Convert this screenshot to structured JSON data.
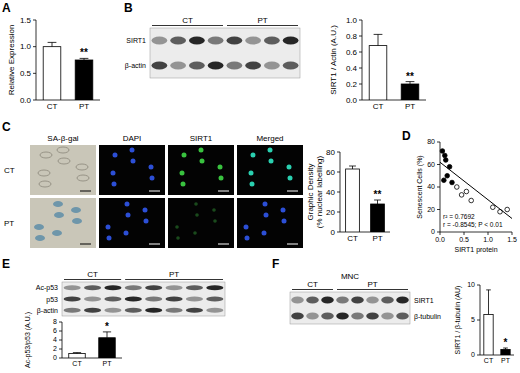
{
  "chart_data": [
    {
      "type": "bar",
      "title": "A",
      "categories": [
        "CT",
        "PT"
      ],
      "values": [
        1.0,
        0.75
      ],
      "errors": [
        0.08,
        0.03
      ],
      "significance": [
        null,
        "**"
      ],
      "colors": [
        "#ffffff",
        "#000000"
      ],
      "y_label": "Relative Expression",
      "ylim": [
        0,
        1.5
      ],
      "yticks": [
        {
          "value": 0,
          "label": "0.0"
        },
        0.5,
        {
          "value": 1,
          "label": "1.0"
        },
        1.5
      ]
    },
    {
      "type": "bar",
      "title": "B",
      "blot": {
        "groups": [
          "CT",
          "PT"
        ],
        "bands": [
          "SIRT1",
          "β-actin"
        ]
      },
      "categories": [
        "CT",
        "PT"
      ],
      "values": [
        0.68,
        0.2
      ],
      "errors": [
        0.14,
        0.03
      ],
      "significance": [
        null,
        "**"
      ],
      "colors": [
        "#ffffff",
        "#000000"
      ],
      "y_label": "SIRT1 / Actin (A.U.)",
      "ylim": [
        0,
        1
      ],
      "yticks": [
        {
          "value": 0,
          "label": "0.0"
        },
        0.2,
        0.4,
        0.6,
        0.8,
        {
          "value": 1,
          "label": "1.0"
        }
      ]
    },
    {
      "type": "bar",
      "title": "C",
      "images": {
        "columns": [
          "SA-β-gal",
          "DAPI",
          "SIRT1",
          "Merged"
        ],
        "rows": [
          "CT",
          "PT"
        ]
      },
      "categories": [
        "CT",
        "PT"
      ],
      "values": [
        63,
        28
      ],
      "errors": [
        3,
        4
      ],
      "significance": [
        null,
        "**"
      ],
      "colors": [
        "#ffffff",
        "#000000"
      ],
      "y_label": [
        "Graphic Density",
        "(% nuclear labelling)"
      ],
      "ylim": [
        0,
        80
      ],
      "yticks": [
        0,
        20,
        40,
        60,
        80
      ]
    },
    {
      "type": "scatter",
      "title": "D",
      "x_label": "SIRT1 protein",
      "y_label": "Senescent Cells (%)",
      "xlim": [
        0,
        1.5
      ],
      "xticks": [
        {
          "value": 0,
          "label": "0.0"
        },
        0.5,
        {
          "value": 1,
          "label": "1.0"
        },
        1.5
      ],
      "ylim": [
        0,
        80
      ],
      "yticks": [
        0,
        20,
        40,
        60,
        80
      ],
      "annotations": [
        "r² = 0.7692",
        "r = -0.8545; P < 0.01"
      ],
      "series": [
        {
          "type": "scatter",
          "marker": "circle",
          "color": "#000000",
          "x": [
            0.05,
            0.08,
            0.1,
            0.12,
            0.15,
            0.2,
            0.25
          ],
          "values": [
            72,
            46,
            68,
            64,
            50,
            58,
            44
          ]
        },
        {
          "type": "scatter",
          "marker": "circle-open",
          "color": "#000000",
          "x": [
            0.35,
            0.45,
            0.55,
            0.65,
            1.1,
            1.25,
            1.4
          ],
          "values": [
            40,
            33,
            36,
            28,
            22,
            18,
            20
          ]
        },
        {
          "type": "line",
          "line_style": "solid",
          "color": "#000000",
          "x": [
            0,
            1.5
          ],
          "values": [
            62,
            12
          ]
        }
      ]
    },
    {
      "type": "bar",
      "title": "E",
      "blot": {
        "groups": [
          "CT",
          "PT"
        ],
        "bands": [
          "Ac-p53",
          "p53",
          "β-actin"
        ]
      },
      "categories": [
        "CT",
        "PT"
      ],
      "values": [
        1,
        4.5
      ],
      "errors": [
        0.2,
        1.3
      ],
      "significance": [
        null,
        "*"
      ],
      "colors": [
        "#ffffff",
        "#000000"
      ],
      "y_label": "Ac-p53/p53 (A.U.)",
      "ylim": [
        0,
        8
      ],
      "yticks": [
        0,
        2,
        4,
        6,
        8
      ]
    },
    {
      "type": "bar",
      "title": "F",
      "blot": {
        "sample": "MNC",
        "groups": [
          "CT",
          "PT"
        ],
        "bands": [
          "SIRT1",
          "β-tubulin"
        ]
      },
      "categories": [
        "CT",
        "PT"
      ],
      "values": [
        5.8,
        0.8
      ],
      "errors": [
        3.5,
        0.2
      ],
      "significance": [
        null,
        "*"
      ],
      "colors": [
        "#ffffff",
        "#000000"
      ],
      "y_label": "SIRT1 / β-tubulin (AU)",
      "ylim": [
        0,
        10
      ],
      "yticks": [
        0,
        5,
        10
      ]
    }
  ]
}
